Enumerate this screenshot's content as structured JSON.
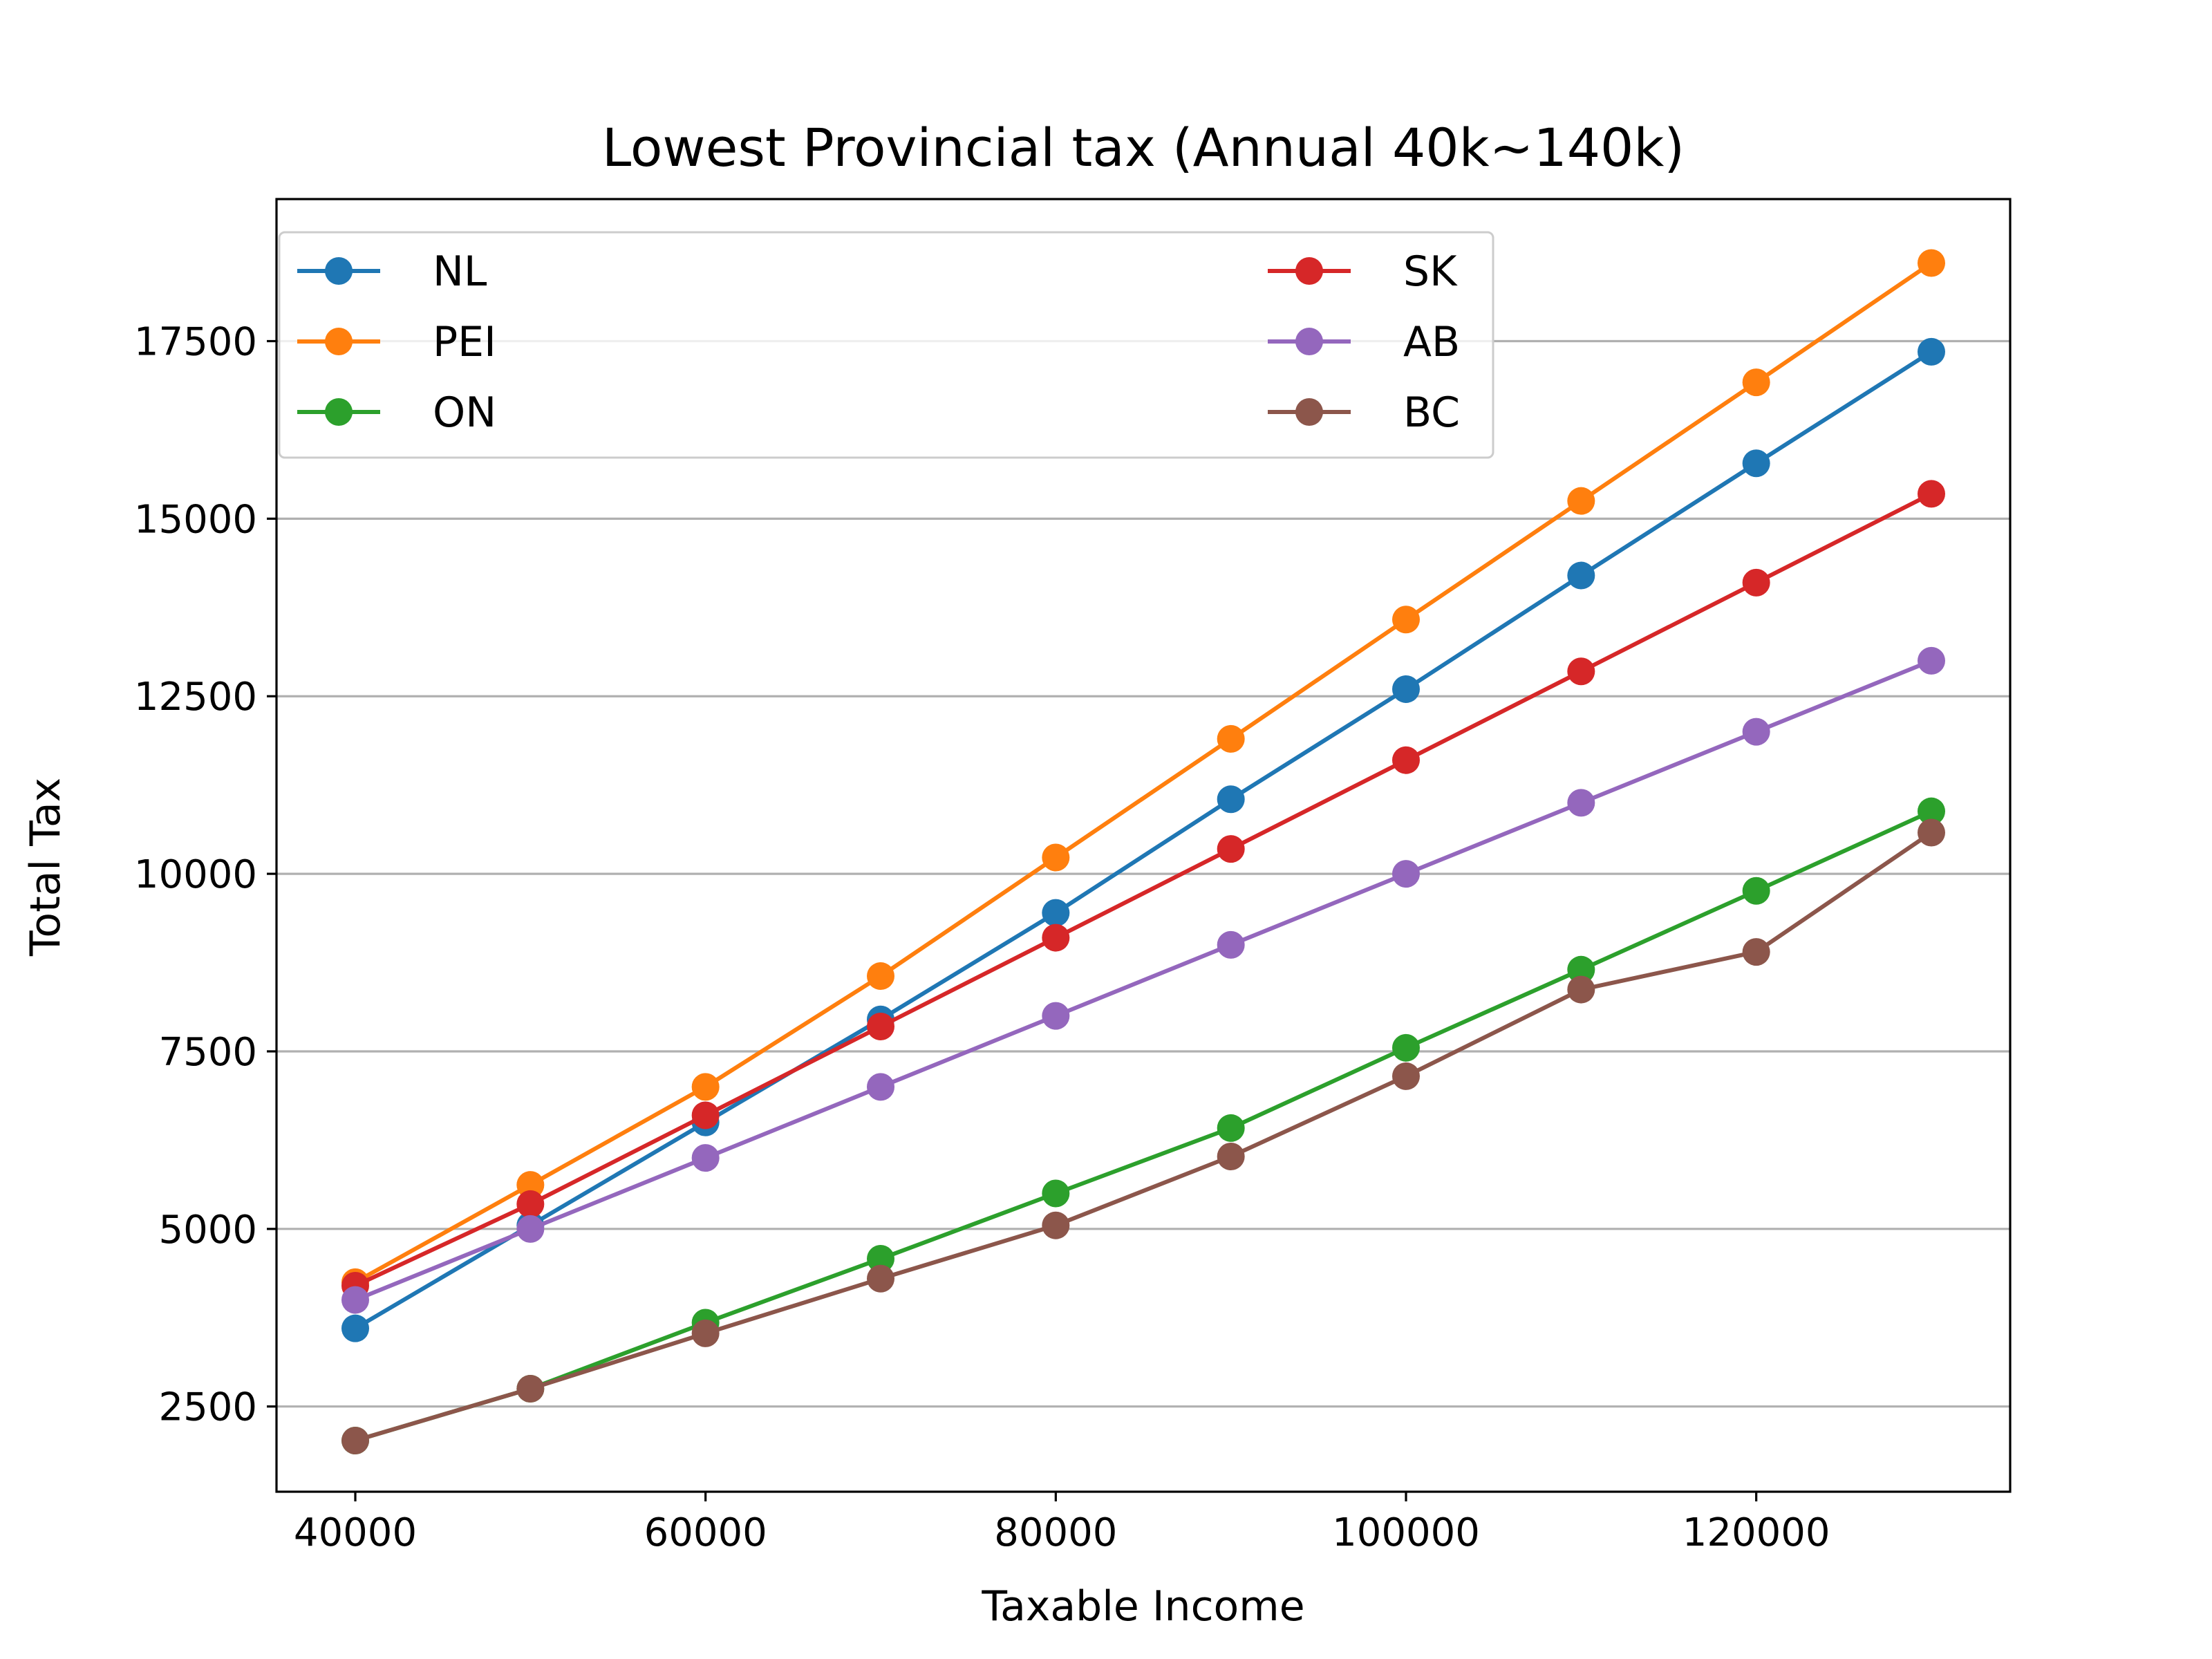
{
  "chart_data": {
    "type": "line",
    "title": "Lowest Provincial tax (Annual 40k~140k)",
    "xlabel": "Taxable Income",
    "ylabel": "Total Tax",
    "x": [
      40000,
      50000,
      60000,
      70000,
      80000,
      90000,
      100000,
      110000,
      120000,
      130000
    ],
    "xlim": [
      35500,
      134500
    ],
    "ylim": [
      1300,
      19500
    ],
    "xticks": [
      40000,
      60000,
      80000,
      100000,
      120000
    ],
    "xtick_labels": [
      "40000",
      "60000",
      "80000",
      "100000",
      "120000"
    ],
    "yticks": [
      2500,
      5000,
      7500,
      10000,
      12500,
      15000,
      17500
    ],
    "ytick_labels": [
      "2500",
      "5000",
      "7500",
      "10000",
      "12500",
      "15000",
      "17500"
    ],
    "grid": "horizontal",
    "legend": {
      "placement": "upper-left",
      "columns": 2
    },
    "series": [
      {
        "name": "NL",
        "color": "#1f77b4",
        "values": [
          3600,
          5050,
          6500,
          7950,
          9450,
          11050,
          12600,
          14200,
          15780,
          17350
        ]
      },
      {
        "name": "PEI",
        "color": "#ff7f0e",
        "values": [
          4250,
          5620,
          7000,
          8560,
          10230,
          11900,
          13580,
          15250,
          16920,
          18600
        ]
      },
      {
        "name": "ON",
        "color": "#2ca02c",
        "values": [
          2020,
          2750,
          3680,
          4580,
          5500,
          6420,
          7550,
          8650,
          9760,
          10880
        ]
      },
      {
        "name": "SK",
        "color": "#d62728",
        "values": [
          4200,
          5350,
          6600,
          7850,
          9100,
          10350,
          11600,
          12850,
          14100,
          15350
        ]
      },
      {
        "name": "AB",
        "color": "#9467bd",
        "values": [
          4000,
          5000,
          6000,
          7000,
          8000,
          9000,
          10000,
          11000,
          12000,
          13000
        ]
      },
      {
        "name": "BC",
        "color": "#8c564b",
        "values": [
          2020,
          2750,
          3530,
          4300,
          5050,
          6020,
          7150,
          8370,
          8900,
          10580
        ]
      }
    ]
  }
}
